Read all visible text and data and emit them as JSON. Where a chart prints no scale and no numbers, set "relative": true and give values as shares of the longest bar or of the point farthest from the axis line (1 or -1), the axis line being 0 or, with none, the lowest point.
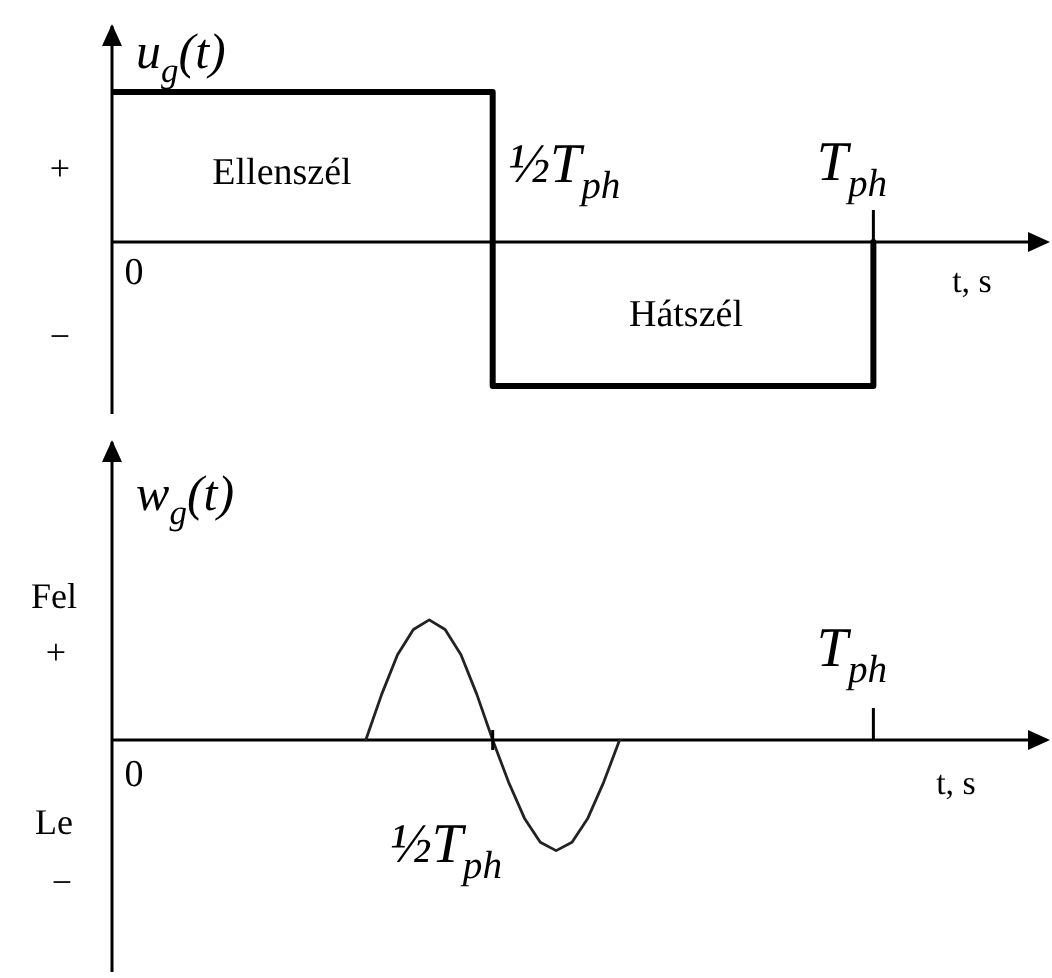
{
  "chart_data": [
    {
      "type": "step",
      "ylabel": "u$_{g}$(t)",
      "xlabel": "t, s",
      "relative": true,
      "color": "#000000",
      "categories": [
        null,
        null,
        null,
        null,
        null,
        null,
        null,
        null,
        null,
        null,
        null,
        null,
        null,
        null,
        null,
        null,
        null,
        null,
        null,
        null,
        null,
        null,
        null,
        null,
        null,
        null,
        null,
        null,
        null,
        null,
        null,
        null,
        null,
        null,
        null,
        null,
        null,
        null,
        null,
        null,
        null,
        null,
        null,
        null,
        null,
        null,
        null,
        null,
        null,
        null,
        null,
        null,
        null,
        null,
        null,
        null,
        null,
        null,
        null
      ],
      "values": [
        1,
        1,
        1,
        1,
        1,
        1,
        1,
        1,
        1,
        1,
        1,
        1,
        1,
        1,
        1,
        1,
        1,
        1,
        1,
        1,
        1,
        1,
        1,
        1,
        -0.96,
        -0.96,
        -0.96,
        -0.96,
        -0.96,
        -0.96,
        -0.96,
        -0.96,
        -0.96,
        -0.96,
        -0.96,
        -0.96,
        -0.96,
        -0.96,
        -0.96,
        -0.96,
        -0.96,
        -0.96,
        -0.96,
        -0.96,
        -0.96,
        -0.96,
        -0.96,
        -0.96,
        0,
        null,
        null,
        null,
        null,
        null,
        null,
        null,
        null,
        null,
        null
      ],
      "annotations": [
        "Ellenszél",
        "Hátszél",
        "+",
        "−",
        "0",
        "½T$_{ph}$",
        "T$_{ph}$"
      ]
    },
    {
      "type": "line",
      "ylabel": "w$_{g}$(t)",
      "xlabel": "t, s",
      "relative": true,
      "color": "#222222",
      "categories": [
        null,
        null,
        null,
        null,
        null,
        null,
        null,
        null,
        null,
        null,
        null,
        null,
        null,
        null,
        null,
        null,
        null,
        null,
        null,
        null,
        null,
        null,
        null,
        null,
        null,
        null,
        null,
        null,
        null,
        null,
        null,
        null,
        null,
        null,
        null,
        null,
        null,
        null,
        null,
        null,
        null,
        null,
        null,
        null,
        null,
        null,
        null,
        null,
        null,
        null,
        null,
        null,
        null,
        null,
        null,
        null,
        null,
        null,
        null
      ],
      "values": [
        null,
        null,
        null,
        null,
        null,
        null,
        null,
        null,
        null,
        null,
        null,
        null,
        null,
        null,
        null,
        null,
        0,
        0.38,
        0.71,
        0.92,
        1,
        0.92,
        0.71,
        0.38,
        0,
        -0.35,
        -0.65,
        -0.85,
        -0.92,
        -0.85,
        -0.65,
        -0.35,
        0,
        null,
        null,
        null,
        null,
        null,
        null,
        null,
        null,
        null,
        null,
        null,
        null,
        null,
        null,
        null,
        null,
        null,
        null,
        null,
        null,
        null,
        null,
        null,
        null,
        null,
        null
      ],
      "annotations": [
        "Fel",
        "+",
        "Le",
        "−",
        "0",
        "½T$_{ph}$",
        "T$_{ph}$"
      ]
    }
  ]
}
